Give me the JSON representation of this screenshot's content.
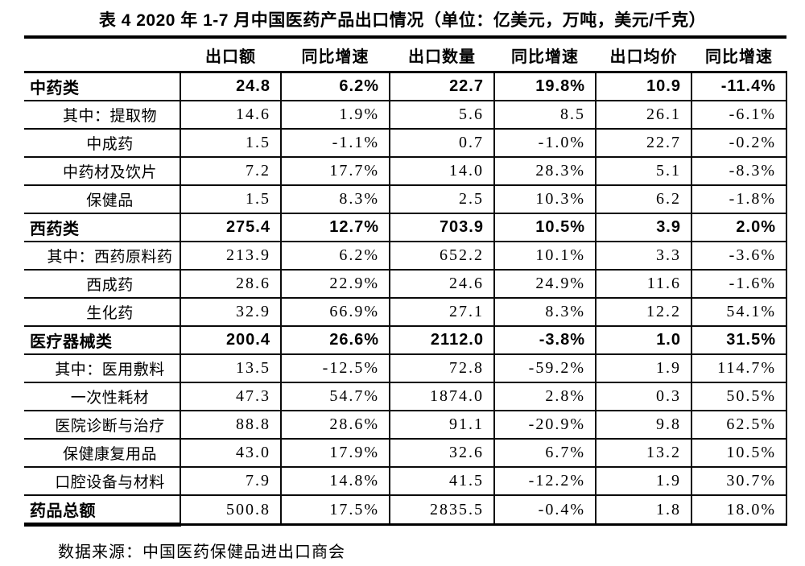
{
  "title": "表 4  2020 年 1-7 月中国医药产品出口情况（单位：亿美元，万吨，美元/千克）",
  "table": {
    "columns": [
      "",
      "出口额",
      "同比增速",
      "出口数量",
      "同比增速",
      "出口均价",
      "同比增速"
    ],
    "rows": [
      {
        "label": "中药类",
        "type": "group",
        "values": [
          "24.8",
          "6.2%",
          "22.7",
          "19.8%",
          "10.9",
          "-11.4%"
        ]
      },
      {
        "label": "其中：提取物",
        "type": "sub",
        "values": [
          "14.6",
          "1.9%",
          "5.6",
          "8.5",
          "26.1",
          "-6.1%"
        ]
      },
      {
        "label": "中成药",
        "type": "sub",
        "values": [
          "1.5",
          "-1.1%",
          "0.7",
          "-1.0%",
          "22.7",
          "-0.2%"
        ]
      },
      {
        "label": "中药材及饮片",
        "type": "sub",
        "values": [
          "7.2",
          "17.7%",
          "14.0",
          "28.3%",
          "5.1",
          "-8.3%"
        ]
      },
      {
        "label": "保健品",
        "type": "sub",
        "values": [
          "1.5",
          "8.3%",
          "2.5",
          "10.3%",
          "6.2",
          "-1.8%"
        ]
      },
      {
        "label": "西药类",
        "type": "group",
        "values": [
          "275.4",
          "12.7%",
          "703.9",
          "10.5%",
          "3.9",
          "2.0%"
        ]
      },
      {
        "label": "其中：西药原料药",
        "type": "sub",
        "values": [
          "213.9",
          "6.2%",
          "652.2",
          "10.1%",
          "3.3",
          "-3.6%"
        ]
      },
      {
        "label": "西成药",
        "type": "sub",
        "values": [
          "28.6",
          "22.9%",
          "24.6",
          "24.9%",
          "11.6",
          "-1.6%"
        ]
      },
      {
        "label": "生化药",
        "type": "sub",
        "values": [
          "32.9",
          "66.9%",
          "27.1",
          "8.3%",
          "12.2",
          "54.1%"
        ]
      },
      {
        "label": "医疗器械类",
        "type": "group",
        "values": [
          "200.4",
          "26.6%",
          "2112.0",
          "-3.8%",
          "1.0",
          "31.5%"
        ]
      },
      {
        "label": "其中：医用敷料",
        "type": "sub",
        "values": [
          "13.5",
          "-12.5%",
          "72.8",
          "-59.2%",
          "1.9",
          "114.7%"
        ]
      },
      {
        "label": "一次性耗材",
        "type": "sub",
        "values": [
          "47.3",
          "54.7%",
          "1874.0",
          "2.8%",
          "0.3",
          "50.5%"
        ]
      },
      {
        "label": "医院诊断与治疗",
        "type": "sub",
        "values": [
          "88.8",
          "28.6%",
          "91.1",
          "-20.9%",
          "9.8",
          "62.5%"
        ]
      },
      {
        "label": "保健康复用品",
        "type": "sub",
        "values": [
          "43.0",
          "17.9%",
          "32.6",
          "6.7%",
          "13.2",
          "10.5%"
        ]
      },
      {
        "label": "口腔设备与材料",
        "type": "sub",
        "values": [
          "7.9",
          "14.8%",
          "41.5",
          "-12.2%",
          "1.9",
          "30.7%"
        ]
      },
      {
        "label": "药品总额",
        "type": "total",
        "values": [
          "500.8",
          "17.5%",
          "2835.5",
          "-0.4%",
          "1.8",
          "18.0%"
        ]
      }
    ]
  },
  "footer": {
    "source": "数据来源：中国医药保健品进出口商会"
  }
}
